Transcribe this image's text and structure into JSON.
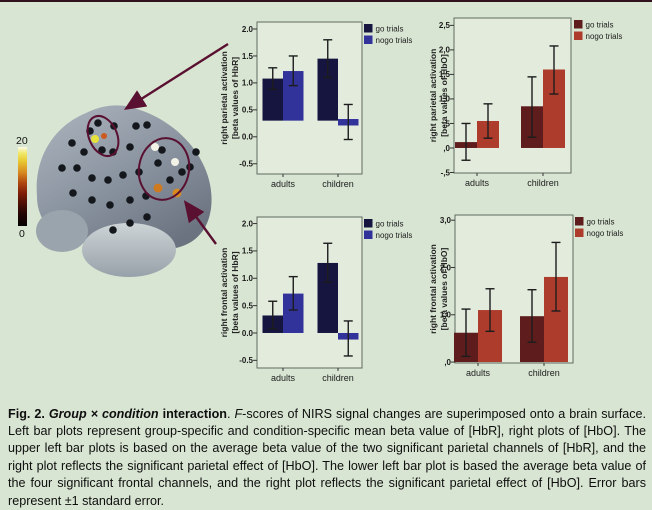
{
  "background_color": "#d9e5d3",
  "colors": {
    "blue_dark": "#15153f",
    "blue_light": "#32329b",
    "red_dark": "#5e1d1c",
    "red_light": "#ad3c2d",
    "error_bar": "#1c1c1c",
    "annotation": "#5a1030",
    "plot_bg": "#e2ebdc",
    "plot_border": "#5f6b5f"
  },
  "brain": {
    "colorbar": {
      "max_label": "20",
      "min_label": "0"
    }
  },
  "chart_data": [
    {
      "id": "upper-left-parietal-hbr",
      "type": "bar",
      "ylabel_line1": "right parietal activation",
      "ylabel_line2": "[beta values of HbR]",
      "categories": [
        "adults",
        "children"
      ],
      "legend": [
        "go trials",
        "nogo trials"
      ],
      "legend_position": "top-right",
      "palette": "blue",
      "ylim": [
        -0.69,
        2.13
      ],
      "yticks": [
        {
          "v": 2.0,
          "label": "2.0"
        },
        {
          "v": 1.5,
          "label": "1.5"
        },
        {
          "v": 1.0,
          "label": "1.0"
        },
        {
          "v": 0.5,
          "label": "0.5"
        },
        {
          "v": 0.0,
          "label": "0.0"
        },
        {
          "v": -0.5,
          "label": "-0.5"
        }
      ],
      "series": [
        {
          "name": "go trials",
          "shade": "dark",
          "bars": [
            {
              "from": 0.3,
              "to": 1.08,
              "err": [
                0.88,
                1.28
              ]
            },
            {
              "from": 0.3,
              "to": 1.45,
              "err": [
                1.1,
                1.8
              ]
            }
          ]
        },
        {
          "name": "nogo trials",
          "shade": "light",
          "bars": [
            {
              "from": 0.3,
              "to": 1.22,
              "err": [
                0.95,
                1.5
              ]
            },
            {
              "from": 0.21,
              "to": 0.33,
              "err": [
                -0.05,
                0.6
              ]
            }
          ]
        }
      ]
    },
    {
      "id": "upper-right-parietal-hbo",
      "type": "bar",
      "ylabel_line1": "right parietal activation",
      "ylabel_line2": "[beta values of HbO]",
      "categories": [
        "adults",
        "children"
      ],
      "legend": [
        "go trials",
        "nogo trials"
      ],
      "legend_position": "top-right",
      "palette": "red",
      "ylim": [
        -0.51,
        2.65
      ],
      "yticks": [
        {
          "v": 2.5,
          "label": "2,5"
        },
        {
          "v": 2.0,
          "label": "2,0"
        },
        {
          "v": 1.5,
          "label": "1,5"
        },
        {
          "v": 1.0,
          "label": "1,0"
        },
        {
          "v": 0.5,
          "label": ",5"
        },
        {
          "v": 0.0,
          "label": ",0"
        },
        {
          "v": -0.5,
          "label": "-,5"
        }
      ],
      "series": [
        {
          "name": "go trials",
          "shade": "dark",
          "bars": [
            {
              "from": 0.0,
              "to": 0.12,
              "err": [
                -0.25,
                0.5
              ]
            },
            {
              "from": 0.0,
              "to": 0.85,
              "err": [
                0.22,
                1.45
              ]
            }
          ]
        },
        {
          "name": "nogo trials",
          "shade": "light",
          "bars": [
            {
              "from": 0.0,
              "to": 0.55,
              "err": [
                0.2,
                0.9
              ]
            },
            {
              "from": 0.0,
              "to": 1.6,
              "err": [
                1.1,
                2.08
              ]
            }
          ]
        }
      ]
    },
    {
      "id": "lower-left-frontal-hbr",
      "type": "bar",
      "ylabel_line1": "right frontal activation",
      "ylabel_line2": "[beta values of HbR]",
      "categories": [
        "adults",
        "children"
      ],
      "legend": [
        "go trials",
        "nogo trials"
      ],
      "legend_position": "top-right",
      "palette": "blue",
      "ylim": [
        -0.64,
        2.12
      ],
      "yticks": [
        {
          "v": 2.0,
          "label": "2.0"
        },
        {
          "v": 1.5,
          "label": "1.5"
        },
        {
          "v": 1.0,
          "label": "1.0"
        },
        {
          "v": 0.5,
          "label": "0.5"
        },
        {
          "v": 0.0,
          "label": "0.0"
        },
        {
          "v": -0.5,
          "label": "-0.5"
        }
      ],
      "series": [
        {
          "name": "go trials",
          "shade": "dark",
          "bars": [
            {
              "from": 0.0,
              "to": 0.32,
              "err": [
                0.08,
                0.58
              ]
            },
            {
              "from": 0.0,
              "to": 1.28,
              "err": [
                0.93,
                1.64
              ]
            }
          ]
        },
        {
          "name": "nogo trials",
          "shade": "light",
          "bars": [
            {
              "from": 0.0,
              "to": 0.72,
              "err": [
                0.42,
                1.03
              ]
            },
            {
              "from": 0.0,
              "to": -0.12,
              "err": [
                -0.42,
                0.22
              ]
            }
          ]
        }
      ]
    },
    {
      "id": "lower-right-frontal-hbo",
      "type": "bar",
      "ylabel_line1": "right frontal activation",
      "ylabel_line2": "[beta values of HbO]",
      "categories": [
        "adults",
        "children"
      ],
      "legend": [
        "go trials",
        "nogo trials"
      ],
      "legend_position": "top-right",
      "palette": "red",
      "ylim": [
        -0.02,
        3.11
      ],
      "yticks": [
        {
          "v": 3.0,
          "label": "3,0"
        },
        {
          "v": 2.0,
          "label": "2,0"
        },
        {
          "v": 1.0,
          "label": "1,0"
        },
        {
          "v": 0.0,
          "label": ",0"
        }
      ],
      "series": [
        {
          "name": "go trials",
          "shade": "dark",
          "bars": [
            {
              "from": 0.0,
              "to": 0.62,
              "err": [
                0.12,
                1.12
              ]
            },
            {
              "from": 0.0,
              "to": 0.97,
              "err": [
                0.42,
                1.53
              ]
            }
          ]
        },
        {
          "name": "nogo trials",
          "shade": "light",
          "bars": [
            {
              "from": 0.0,
              "to": 1.1,
              "err": [
                0.65,
                1.55
              ]
            },
            {
              "from": 0.0,
              "to": 1.8,
              "err": [
                1.08,
                2.53
              ]
            }
          ]
        }
      ]
    }
  ],
  "caption": {
    "segments": [
      {
        "text": "Fig. 2. ",
        "style": "bold"
      },
      {
        "text": "Group × condition",
        "style": "bold-italic"
      },
      {
        "text": " interaction",
        "style": "bold"
      },
      {
        "text": ". ",
        "style": "normal"
      },
      {
        "text": "F",
        "style": "italic"
      },
      {
        "text": "-scores of NIRS signal changes are superimposed onto a brain surface. Left bar plots represent group-specific and condition-specific mean beta value of [HbR], right plots of [HbO]. The upper left bar plots is based on the average beta value of the two significant parietal channels of [HbR], and the right plot reflects the significant parietal effect of [HbO]. The lower left bar plot is based the average beta value of the four significant frontal channels, and the right plot reflects the significant parietal effect of [HbO]. Error bars represent ±1 standard error.",
        "style": "normal"
      }
    ]
  }
}
